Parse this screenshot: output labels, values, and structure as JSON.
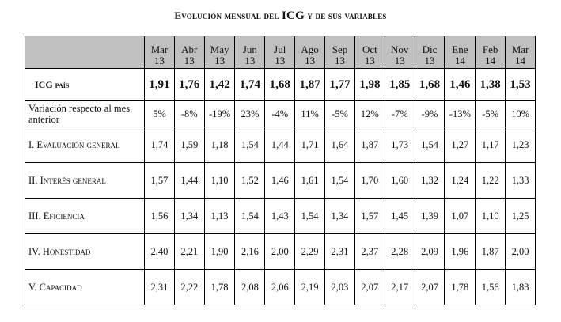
{
  "title": {
    "part1": "Evolución mensual del ",
    "part2": "ICG",
    "part3": " y de sus variables"
  },
  "months": [
    {
      "m": "Mar",
      "y": "13"
    },
    {
      "m": "Abr",
      "y": "13"
    },
    {
      "m": "May",
      "y": "13"
    },
    {
      "m": "Jun",
      "y": "13"
    },
    {
      "m": "Jul",
      "y": "13"
    },
    {
      "m": "Ago",
      "y": "13"
    },
    {
      "m": "Sep",
      "y": "13"
    },
    {
      "m": "Oct",
      "y": "13"
    },
    {
      "m": "Nov",
      "y": "13"
    },
    {
      "m": "Dic",
      "y": "13"
    },
    {
      "m": "Ene",
      "y": "14"
    },
    {
      "m": "Feb",
      "y": "14"
    },
    {
      "m": "Mar",
      "y": "14"
    }
  ],
  "rows": [
    {
      "label": "ICG país",
      "values": [
        "1,91",
        "1,76",
        "1,42",
        "1,74",
        "1,68",
        "1,87",
        "1,77",
        "1,98",
        "1,85",
        "1,68",
        "1,46",
        "1,38",
        "1,53"
      ]
    },
    {
      "label": "Variación respecto al mes anterior",
      "values": [
        "5%",
        "-8%",
        "-19%",
        "23%",
        "-4%",
        "11%",
        "-5%",
        "12%",
        "-7%",
        "-9%",
        "-13%",
        "-5%",
        "10%"
      ]
    },
    {
      "label": "I. Evaluación general",
      "values": [
        "1,74",
        "1,59",
        "1,18",
        "1,54",
        "1,44",
        "1,71",
        "1,64",
        "1,87",
        "1,73",
        "1,54",
        "1,27",
        "1,17",
        "1,23"
      ]
    },
    {
      "label": "II. Interés general",
      "values": [
        "1,57",
        "1,44",
        "1,10",
        "1,52",
        "1,46",
        "1,61",
        "1,54",
        "1,70",
        "1,60",
        "1,32",
        "1,24",
        "1,22",
        "1,33"
      ]
    },
    {
      "label": "III. Eficiencia",
      "values": [
        "1,56",
        "1,34",
        "1,13",
        "1,54",
        "1,43",
        "1,54",
        "1,34",
        "1,57",
        "1,45",
        "1,39",
        "1,07",
        "1,10",
        "1,25"
      ]
    },
    {
      "label": "IV. Honestidad",
      "values": [
        "2,40",
        "2,21",
        "1,90",
        "2,16",
        "2,00",
        "2,29",
        "2,31",
        "2,37",
        "2,28",
        "2,09",
        "1,96",
        "1,87",
        "2,00"
      ]
    },
    {
      "label": "V. Capacidad",
      "values": [
        "2,31",
        "2,22",
        "1,78",
        "2,08",
        "2,06",
        "2,19",
        "2,03",
        "2,07",
        "2,17",
        "2,07",
        "1,78",
        "1,56",
        "1,83"
      ]
    }
  ]
}
